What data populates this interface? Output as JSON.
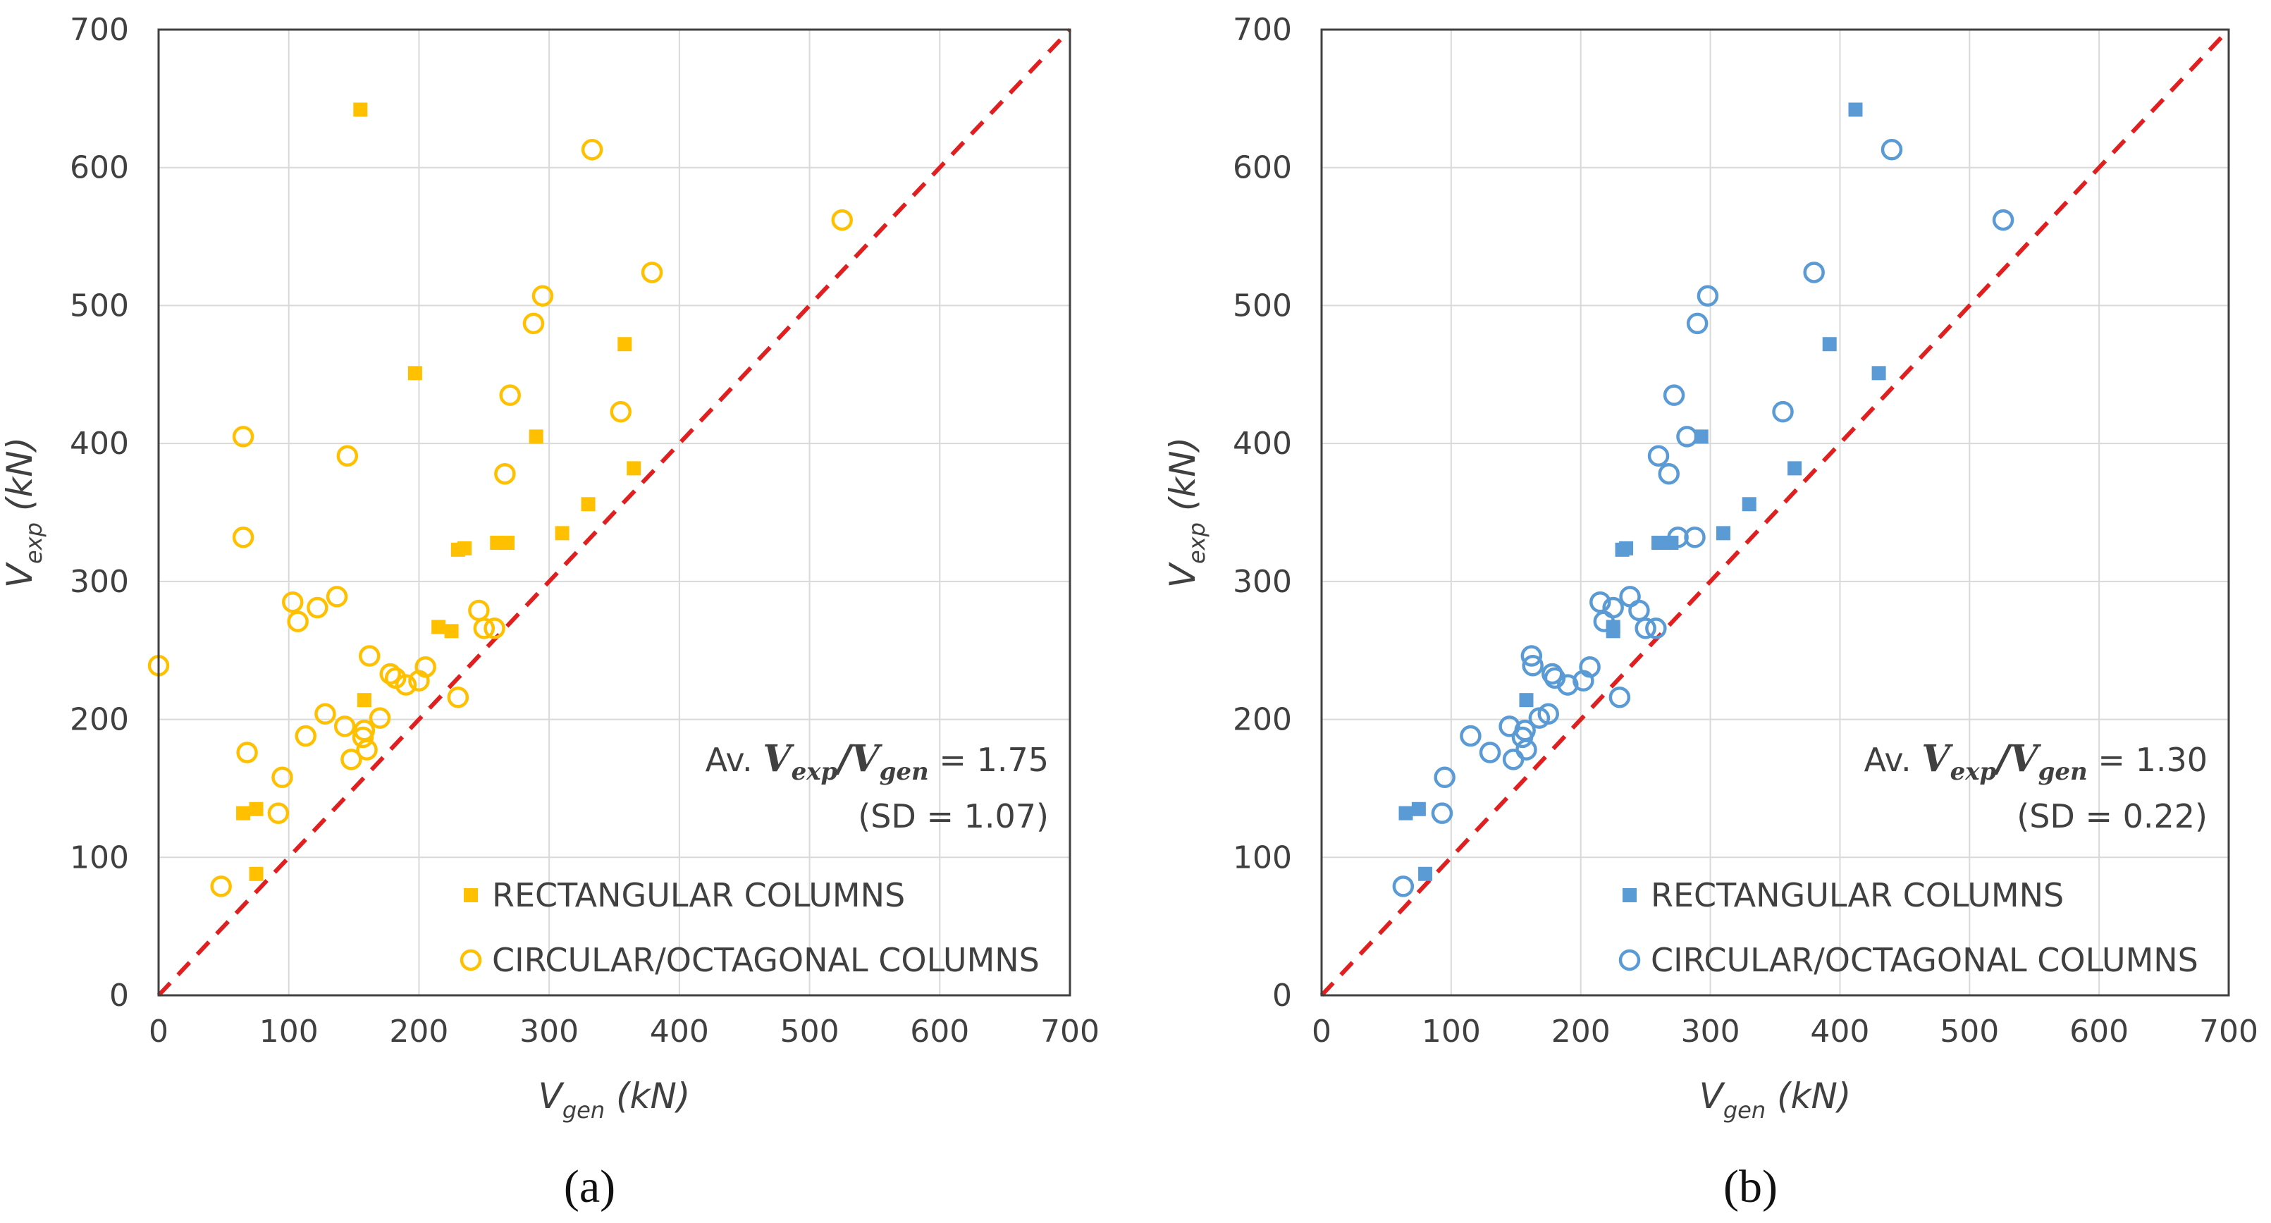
{
  "chart_data": [
    {
      "type": "scatter",
      "panel_label": "(a)",
      "xlabel": {
        "main": "V",
        "sub": "gen",
        "unit": "(kN)"
      },
      "ylabel": {
        "main": "V",
        "sub": "exp",
        "unit": "(kN)"
      },
      "xlim": [
        0,
        700
      ],
      "ylim": [
        0,
        700
      ],
      "xticks": [
        0,
        100,
        200,
        300,
        400,
        500,
        600,
        700
      ],
      "yticks": [
        0,
        100,
        200,
        300,
        400,
        500,
        600,
        700
      ],
      "grid": true,
      "color": "#FFC000",
      "identity_line": {
        "color": "#E02020",
        "style": "dashed"
      },
      "stats": {
        "prefix": "Av.",
        "num_main": "V",
        "num_sub": "exp",
        "den_main": "V",
        "den_sub": "gen",
        "value": "= 1.75",
        "sd": "(SD = 1.07)"
      },
      "series": [
        {
          "name": "RECTANGULAR COLUMNS",
          "marker": "filled-square",
          "x": [
            155,
            65,
            75,
            75,
            197,
            215,
            225,
            230,
            235,
            260,
            268,
            290,
            310,
            330,
            358,
            365,
            158
          ],
          "y": [
            642,
            132,
            135,
            88,
            451,
            267,
            264,
            323,
            324,
            328,
            328,
            405,
            335,
            356,
            472,
            382,
            214
          ]
        },
        {
          "name": "CIRCULAR/OCTAGONAL COLUMNS",
          "marker": "open-circle",
          "x": [
            0,
            48,
            65,
            65,
            68,
            92,
            95,
            103,
            107,
            113,
            122,
            128,
            137,
            143,
            145,
            148,
            157,
            158,
            160,
            162,
            170,
            178,
            182,
            190,
            200,
            205,
            230,
            246,
            250,
            258,
            266,
            270,
            288,
            295,
            333,
            355,
            379,
            525
          ],
          "y": [
            239,
            79,
            405,
            332,
            176,
            132,
            158,
            285,
            271,
            188,
            281,
            204,
            289,
            195,
            391,
            171,
            187,
            192,
            178,
            246,
            201,
            233,
            230,
            225,
            228,
            238,
            216,
            279,
            266,
            266,
            378,
            435,
            487,
            507,
            613,
            423,
            524,
            562
          ]
        }
      ]
    },
    {
      "type": "scatter",
      "panel_label": "(b)",
      "xlabel": {
        "main": "V",
        "sub": "gen",
        "unit": "(kN)"
      },
      "ylabel": {
        "main": "V",
        "sub": "exp",
        "unit": "(kN)"
      },
      "xlim": [
        0,
        700
      ],
      "ylim": [
        0,
        700
      ],
      "xticks": [
        0,
        100,
        200,
        300,
        400,
        500,
        600,
        700
      ],
      "yticks": [
        0,
        100,
        200,
        300,
        400,
        500,
        600,
        700
      ],
      "grid": true,
      "color": "#5B9BD5",
      "identity_line": {
        "color": "#E02020",
        "style": "dashed"
      },
      "stats": {
        "prefix": "Av.",
        "num_main": "V",
        "num_sub": "exp",
        "den_main": "V",
        "den_sub": "gen",
        "value": "= 1.30",
        "sd": "(SD = 0.22)"
      },
      "series": [
        {
          "name": "RECTANGULAR COLUMNS",
          "marker": "filled-square",
          "x": [
            412,
            65,
            75,
            80,
            430,
            225,
            225,
            232,
            235,
            260,
            270,
            293,
            310,
            330,
            392,
            365,
            158
          ],
          "y": [
            642,
            132,
            135,
            88,
            451,
            267,
            264,
            323,
            324,
            328,
            328,
            405,
            335,
            356,
            472,
            382,
            214
          ]
        },
        {
          "name": "CIRCULAR/OCTAGONAL COLUMNS",
          "marker": "open-circle",
          "x": [
            63,
            93,
            95,
            115,
            130,
            145,
            148,
            155,
            157,
            158,
            162,
            163,
            168,
            175,
            178,
            180,
            190,
            202,
            207,
            215,
            218,
            225,
            230,
            238,
            245,
            250,
            258,
            260,
            268,
            272,
            275,
            282,
            288,
            290,
            298,
            356,
            380,
            440,
            526
          ],
          "y": [
            79,
            132,
            158,
            188,
            176,
            195,
            171,
            187,
            192,
            178,
            246,
            239,
            201,
            204,
            233,
            230,
            225,
            228,
            238,
            285,
            271,
            281,
            216,
            289,
            279,
            266,
            266,
            391,
            378,
            435,
            332,
            405,
            332,
            487,
            507,
            423,
            524,
            613,
            562
          ]
        }
      ]
    }
  ]
}
